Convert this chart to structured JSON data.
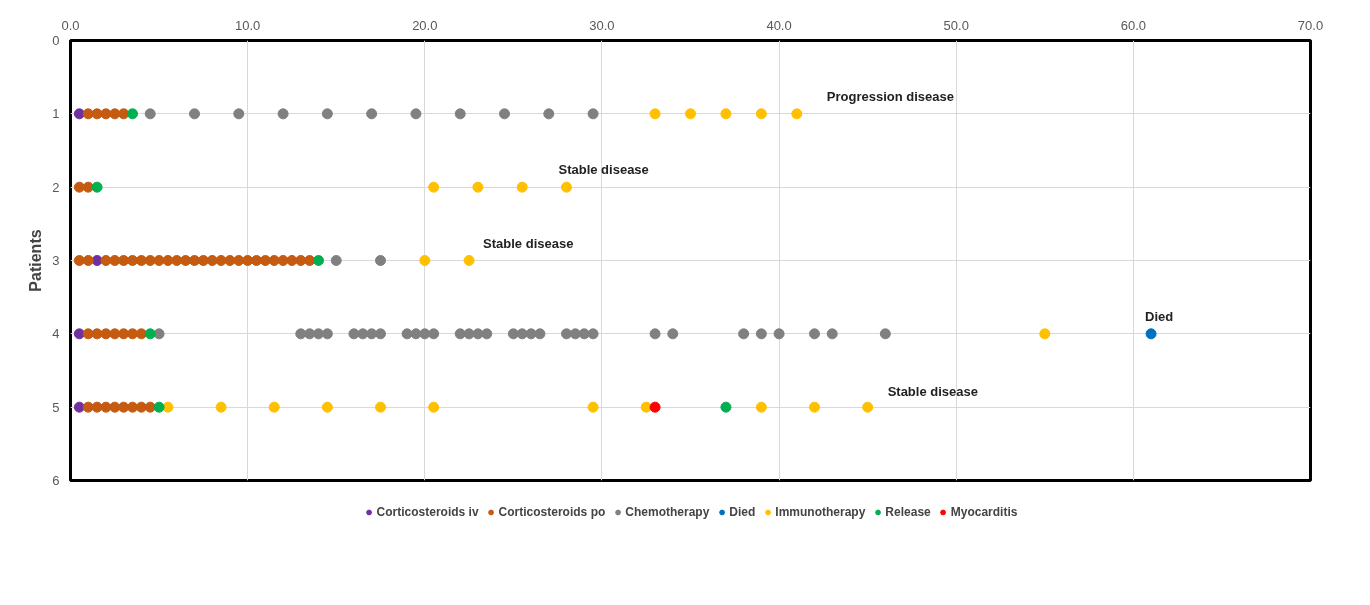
{
  "chart_data": {
    "type": "scatter",
    "ylabel": "Patients",
    "xlim": [
      0,
      70
    ],
    "ylim": [
      6,
      0
    ],
    "xticks": [
      {
        "value": 0,
        "label": "0.0"
      },
      {
        "value": 10,
        "label": "10.0"
      },
      {
        "value": 20,
        "label": "20.0"
      },
      {
        "value": 30,
        "label": "30.0"
      },
      {
        "value": 40,
        "label": "40.0"
      },
      {
        "value": 50,
        "label": "50.0"
      },
      {
        "value": 60,
        "label": "60.0"
      },
      {
        "value": 70,
        "label": "70.0"
      }
    ],
    "yticks": [
      0,
      1,
      2,
      3,
      4,
      5,
      6
    ],
    "grid": true,
    "legend": "bottom",
    "marker": "circle",
    "series": [
      {
        "name": "Corticosteroids iv",
        "color": "#7030a0",
        "x": [
          0.5,
          1.5,
          0.5,
          0.5
        ],
        "values": [
          1,
          3,
          4,
          5
        ]
      },
      {
        "name": "Corticosteroids po",
        "color": "#c55a11",
        "x": [
          1,
          1.5,
          2,
          2.5,
          3,
          0.5,
          1,
          0.5,
          1,
          2,
          2.5,
          3,
          3.5,
          4,
          4.5,
          5,
          5.5,
          6,
          6.5,
          7,
          7.5,
          8,
          8.5,
          9,
          9.5,
          10,
          10.5,
          11,
          11.5,
          12,
          12.5,
          13,
          13.5,
          1,
          1.5,
          2,
          2.5,
          3,
          3.5,
          4,
          1,
          1.5,
          2,
          2.5,
          3,
          3.5,
          4,
          4.5
        ],
        "values": [
          1,
          1,
          1,
          1,
          1,
          2,
          2,
          3,
          3,
          3,
          3,
          3,
          3,
          3,
          3,
          3,
          3,
          3,
          3,
          3,
          3,
          3,
          3,
          3,
          3,
          3,
          3,
          3,
          3,
          3,
          3,
          3,
          3,
          4,
          4,
          4,
          4,
          4,
          4,
          4,
          5,
          5,
          5,
          5,
          5,
          5,
          5,
          5
        ]
      },
      {
        "name": "Chemotherapy",
        "color": "#808080",
        "x": [
          4.5,
          7,
          9.5,
          12,
          14.5,
          17,
          19.5,
          22,
          24.5,
          27,
          29.5,
          15,
          17.5,
          5,
          13,
          13.5,
          14,
          14.5,
          16,
          16.5,
          17,
          17.5,
          19,
          19.5,
          20,
          20.5,
          22,
          22.5,
          23,
          23.5,
          25,
          25.5,
          26,
          26.5,
          28,
          28.5,
          29,
          29.5,
          33,
          34,
          38,
          39,
          40,
          42,
          43,
          46
        ],
        "values": [
          1,
          1,
          1,
          1,
          1,
          1,
          1,
          1,
          1,
          1,
          1,
          3,
          3,
          4,
          4,
          4,
          4,
          4,
          4,
          4,
          4,
          4,
          4,
          4,
          4,
          4,
          4,
          4,
          4,
          4,
          4,
          4,
          4,
          4,
          4,
          4,
          4,
          4,
          4,
          4,
          4,
          4,
          4,
          4,
          4,
          4
        ]
      },
      {
        "name": "Died",
        "color": "#0070c0",
        "x": [
          61
        ],
        "values": [
          4
        ]
      },
      {
        "name": "Immunotherapy",
        "color": "#ffc000",
        "x": [
          33,
          35,
          37,
          39,
          41,
          20.5,
          23,
          25.5,
          28,
          20,
          22.5,
          55,
          5.5,
          8.5,
          11.5,
          14.5,
          17.5,
          20.5,
          29.5,
          32.5,
          39,
          42,
          45
        ],
        "values": [
          1,
          1,
          1,
          1,
          1,
          2,
          2,
          2,
          2,
          3,
          3,
          4,
          5,
          5,
          5,
          5,
          5,
          5,
          5,
          5,
          5,
          5,
          5
        ]
      },
      {
        "name": "Release",
        "color": "#00b050",
        "x": [
          3.5,
          1.5,
          14,
          4.5,
          5,
          37
        ],
        "values": [
          1,
          2,
          3,
          4,
          5,
          5
        ]
      },
      {
        "name": "Myocarditis",
        "color": "#ff0000",
        "x": [
          33
        ],
        "values": [
          5
        ]
      }
    ],
    "annotations": [
      {
        "text": "Progression disease",
        "x": 41,
        "y": 1
      },
      {
        "text": "Stable disease",
        "x": 28,
        "y": 2
      },
      {
        "text": "Stable disease",
        "x": 22.5,
        "y": 3
      },
      {
        "text": "Died",
        "x": 61,
        "y": 4
      },
      {
        "text": "Stable disease",
        "x": 45,
        "y": 5
      }
    ]
  }
}
